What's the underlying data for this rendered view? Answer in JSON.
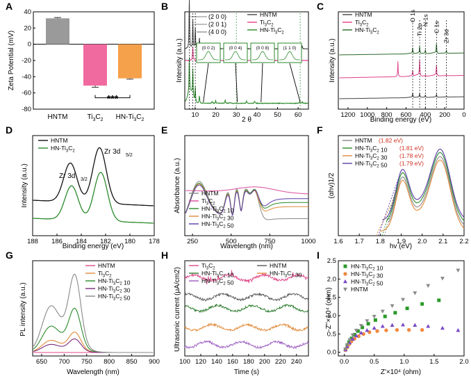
{
  "chart_data": [
    {
      "panel": "A",
      "type": "bar",
      "ylabel": "Zeta Potential (mV)",
      "categories": [
        "HNTM",
        "Ti3C2",
        "HN-Ti3C2"
      ],
      "values": [
        32,
        -51,
        -42
      ],
      "errors": [
        1,
        2,
        1
      ],
      "colors": [
        "#9a9a9a",
        "#f06aa0",
        "#f5a04a"
      ],
      "ylim": [
        -80,
        40
      ],
      "yticks": [
        40,
        20,
        0,
        -20,
        -40,
        -60,
        -80
      ],
      "annotation": "***"
    },
    {
      "panel": "B",
      "type": "line",
      "xlabel": "2 θ",
      "ylabel": "Intensity (a.u.)",
      "xlim": [
        5,
        65
      ],
      "xticks": [
        10,
        20,
        30,
        40,
        50,
        60
      ],
      "series": [
        {
          "name": "HNTM",
          "color": "#444444",
          "baseline": 0.62
        },
        {
          "name": "Ti3C2",
          "color": "#e0408a",
          "baseline": 0.5
        },
        {
          "name": "HN-Ti3C2",
          "color": "#2a8a2a",
          "baseline": 0.06
        }
      ],
      "peak_labels": [
        "(2 0 0)",
        "(2 0 1)",
        "(4 0 0)"
      ],
      "insets": [
        "(0 0 2)",
        "(0 0 4)",
        "(0 0 8)",
        "(1 1 0)"
      ]
    },
    {
      "panel": "C",
      "type": "line",
      "xlabel": "Binding energy (eV)",
      "ylabel": "Intensity (a.u.)",
      "xlim": [
        1300,
        0
      ],
      "xticks": [
        1200,
        1000,
        800,
        600,
        400,
        200,
        0
      ],
      "series": [
        {
          "name": "HNTM",
          "color": "#444444"
        },
        {
          "name": "Ti3C2",
          "color": "#e0408a"
        },
        {
          "name": "HN-Ti3C2",
          "color": "#2a6a2a"
        }
      ],
      "peak_labels": [
        "O 1s",
        "Ti 2p",
        "N 1s",
        "C 1s",
        "Zr 3d"
      ],
      "peak_positions": [
        531,
        459,
        400,
        285,
        182
      ]
    },
    {
      "panel": "D",
      "type": "line",
      "xlabel": "Binding energy (eV)",
      "ylabel": "Intensity (a.u.)",
      "xlim": [
        188,
        178
      ],
      "xticks": [
        188,
        186,
        184,
        182,
        180,
        178
      ],
      "series": [
        {
          "name": "HNTM",
          "color": "#111111",
          "peaks": [
            184.9,
            182.5
          ]
        },
        {
          "name": "HN-Ti3C2",
          "color": "#2a8a2a",
          "peaks": [
            184.8,
            182.4
          ]
        }
      ],
      "annotations": [
        "Zr 3d",
        "3/2",
        "Zr 3d",
        "5/2"
      ]
    },
    {
      "panel": "E",
      "type": "line",
      "xlabel": "Wavelength (nm)",
      "ylabel": "Absorbance (a.u.)",
      "xlim": [
        200,
        1000
      ],
      "xticks": [
        250,
        500,
        750,
        1000
      ],
      "series": [
        {
          "name": "HNTM",
          "color": "#888888"
        },
        {
          "name": "Ti3C2",
          "color": "#d84a9a"
        },
        {
          "name": "HN-Ti3C2 10",
          "color": "#2a8a2a"
        },
        {
          "name": "HN-Ti3C2 30",
          "color": "#e08a3a"
        },
        {
          "name": "HN-Ti3C2 50",
          "color": "#5a3aa8"
        }
      ]
    },
    {
      "panel": "F",
      "type": "line",
      "xlabel": "hv (eV)",
      "ylabel": "(αhv)1/2",
      "xlim": [
        1.6,
        2.2
      ],
      "xticks": [
        1.6,
        1.7,
        1.8,
        1.9,
        2.0,
        2.1,
        2.2
      ],
      "series": [
        {
          "name": "HNTM",
          "gap_label": "(1.82 eV)",
          "gap": 1.82,
          "color": "#888888"
        },
        {
          "name": "HN-Ti3C2 10",
          "gap_label": "(1.81 eV)",
          "gap": 1.81,
          "color": "#2a8a2a"
        },
        {
          "name": "HN-Ti3C2 30",
          "gap_label": "(1.78 eV)",
          "gap": 1.78,
          "color": "#e08a3a"
        },
        {
          "name": "HN-Ti3C2 50",
          "gap_label": "(1.79 eV)",
          "gap": 1.79,
          "color": "#5a3aa8"
        }
      ]
    },
    {
      "panel": "G",
      "type": "line",
      "xlabel": "Wavelength (nm)",
      "ylabel": "PL intensity (a.u.)",
      "xlim": [
        630,
        900
      ],
      "xticks": [
        650,
        700,
        750,
        800,
        850,
        900
      ],
      "series": [
        {
          "name": "HNTM",
          "color": "#e04a8a",
          "scale": 0.0
        },
        {
          "name": "Ti3C2",
          "color": "#e08a3a",
          "scale": 0.24
        },
        {
          "name": "HN-Ti3C2 10",
          "color": "#2a8a2a",
          "scale": 0.52
        },
        {
          "name": "HN-Ti3C2 30",
          "color": "#7a2a7a",
          "scale": 0.16
        },
        {
          "name": "HN-Ti3C2 50",
          "color": "#888888",
          "scale": 0.92
        }
      ]
    },
    {
      "panel": "H",
      "type": "line",
      "xlabel": "Time (s)",
      "ylabel": "Ultrasonic current (μA/cm2)",
      "xlim": [
        100,
        255
      ],
      "xticks": [
        100,
        120,
        140,
        160,
        180,
        200,
        220,
        240
      ],
      "series": [
        {
          "name": "Ti3C2",
          "color": "#e04a8a",
          "level": 0.82
        },
        {
          "name": "HNTM",
          "color": "#555555",
          "level": 0.62
        },
        {
          "name": "HN-Ti3C2 10",
          "color": "#2a7a2a",
          "level": 0.5
        },
        {
          "name": "HN-Ti3C2 30",
          "color": "#e08a3a",
          "level": 0.3
        },
        {
          "name": "HN-Ti3C2 50",
          "color": "#9a5ac0",
          "level": 0.12
        }
      ]
    },
    {
      "panel": "I",
      "type": "scatter",
      "xlabel": "Z'×10⁴ (ohm)",
      "ylabel": "-Z''×10⁴ (ohm)",
      "xlim": [
        -0.1,
        2.0
      ],
      "ylim": [
        -0.1,
        2.5
      ],
      "xticks": [
        0.0,
        0.5,
        1.0,
        1.5,
        2.0
      ],
      "yticks": [
        0.0,
        0.5,
        1.0,
        1.5,
        2.0,
        2.5
      ],
      "series": [
        {
          "name": "HN-Ti3C2 10",
          "color": "#2a9a2a",
          "marker": "square",
          "x": [
            0.02,
            0.05,
            0.08,
            0.12,
            0.17,
            0.23,
            0.3,
            0.4,
            0.52,
            0.68,
            0.85,
            1.05,
            1.3,
            1.58
          ],
          "y": [
            0.08,
            0.18,
            0.28,
            0.38,
            0.48,
            0.58,
            0.68,
            0.78,
            0.88,
            0.98,
            1.08,
            1.2,
            1.32,
            1.42
          ]
        },
        {
          "name": "HN-Ti3C2 30",
          "color": "#f08a40",
          "marker": "circle",
          "x": [
            0.02,
            0.05,
            0.08,
            0.12,
            0.17,
            0.24,
            0.32,
            0.42,
            0.55,
            0.7,
            0.88,
            1.08,
            1.3
          ],
          "y": [
            0.06,
            0.14,
            0.22,
            0.3,
            0.37,
            0.44,
            0.5,
            0.55,
            0.58,
            0.6,
            0.61,
            0.61,
            0.61
          ]
        },
        {
          "name": "HN-Ti3C2 50",
          "color": "#7a4ac8",
          "marker": "triangle-up",
          "x": [
            0.02,
            0.05,
            0.09,
            0.14,
            0.2,
            0.28,
            0.38,
            0.5,
            0.64,
            0.8,
            0.98,
            1.18,
            1.4,
            1.64,
            1.9
          ],
          "y": [
            0.07,
            0.16,
            0.26,
            0.36,
            0.45,
            0.53,
            0.6,
            0.66,
            0.71,
            0.74,
            0.75,
            0.74,
            0.71,
            0.66,
            0.6
          ]
        },
        {
          "name": "HNTM",
          "color": "#8a8a8a",
          "marker": "triangle-down",
          "x": [
            0.02,
            0.05,
            0.09,
            0.14,
            0.2,
            0.28,
            0.38,
            0.5,
            0.64,
            0.8,
            0.98,
            1.18,
            1.4,
            1.64,
            1.9
          ],
          "y": [
            0.09,
            0.21,
            0.34,
            0.47,
            0.6,
            0.73,
            0.86,
            0.98,
            1.12,
            1.27,
            1.44,
            1.62,
            1.82,
            2.02,
            2.24
          ]
        }
      ]
    }
  ]
}
